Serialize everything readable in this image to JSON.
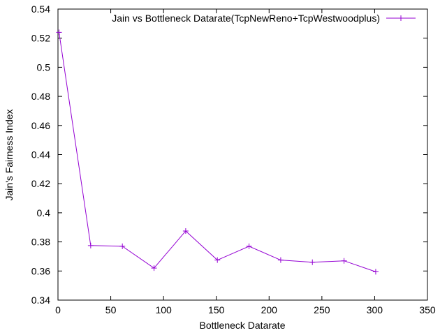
{
  "chart_data": {
    "type": "line",
    "title": "",
    "xlabel": "Bottleneck Datarate",
    "ylabel": "Jain's Fairness Index",
    "xlim": [
      0,
      350
    ],
    "ylim": [
      0.34,
      0.54
    ],
    "x_ticks": [
      0,
      50,
      100,
      150,
      200,
      250,
      300,
      350
    ],
    "y_ticks": [
      0.34,
      0.36,
      0.38,
      0.4,
      0.42,
      0.44,
      0.46,
      0.48,
      0.5,
      0.52,
      0.54
    ],
    "x_tick_labels": [
      "0",
      "50",
      "100",
      "150",
      "200",
      "250",
      "300",
      "350"
    ],
    "y_tick_labels": [
      "0.34",
      "0.36",
      "0.38",
      "0.4",
      "0.42",
      "0.44",
      "0.46",
      "0.48",
      "0.5",
      "0.52",
      "0.54"
    ],
    "grid": false,
    "legend_position": "top-right",
    "series": [
      {
        "name": "Jain vs Bottleneck Datarate(TcpNewReno+TcpWestwoodplus)",
        "color": "#9400d3",
        "marker": "plus",
        "x": [
          1,
          31,
          61,
          91,
          121,
          151,
          181,
          211,
          241,
          271,
          301
        ],
        "y": [
          0.524,
          0.3775,
          0.377,
          0.362,
          0.3875,
          0.3675,
          0.377,
          0.3675,
          0.366,
          0.367,
          0.3595
        ]
      }
    ]
  }
}
